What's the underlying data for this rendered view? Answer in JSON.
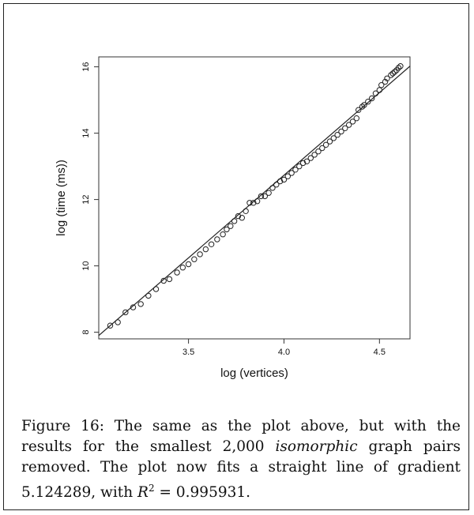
{
  "caption": {
    "lead": "Figure 16:  The same as the plot above, but with the results for the smallest 2,000",
    "emph": "isomorphic",
    "tail": "graph pairs removed. The plot now fits a straight line of gradient 5.124289, with",
    "r2_label": "R",
    "r2_sup": "2",
    "r2_value": " = 0.995931."
  },
  "chart_data": {
    "type": "scatter",
    "xlabel": "log (vertices)",
    "ylabel": "log (time (ms))",
    "xlim": [
      3.03,
      4.66
    ],
    "ylim": [
      7.8,
      16.3
    ],
    "xticks": [
      3.5,
      4.0,
      4.5
    ],
    "xtick_labels": [
      "3.5",
      "4.0",
      "4.5"
    ],
    "yticks": [
      8,
      10,
      12,
      14,
      16
    ],
    "ytick_labels": [
      "8",
      "10",
      "12",
      "14",
      "16"
    ],
    "grid": false,
    "fit_line": {
      "x": [
        3.03,
        4.66
      ],
      "y": [
        7.9,
        16.02
      ]
    },
    "points": [
      [
        3.09,
        8.2
      ],
      [
        3.13,
        8.3
      ],
      [
        3.17,
        8.6
      ],
      [
        3.21,
        8.75
      ],
      [
        3.25,
        8.85
      ],
      [
        3.29,
        9.1
      ],
      [
        3.33,
        9.3
      ],
      [
        3.37,
        9.55
      ],
      [
        3.4,
        9.6
      ],
      [
        3.44,
        9.8
      ],
      [
        3.47,
        9.95
      ],
      [
        3.5,
        10.05
      ],
      [
        3.53,
        10.2
      ],
      [
        3.56,
        10.35
      ],
      [
        3.59,
        10.5
      ],
      [
        3.62,
        10.65
      ],
      [
        3.65,
        10.8
      ],
      [
        3.68,
        10.95
      ],
      [
        3.7,
        11.1
      ],
      [
        3.72,
        11.2
      ],
      [
        3.74,
        11.35
      ],
      [
        3.76,
        11.5
      ],
      [
        3.78,
        11.45
      ],
      [
        3.8,
        11.65
      ],
      [
        3.82,
        11.9
      ],
      [
        3.84,
        11.9
      ],
      [
        3.86,
        11.95
      ],
      [
        3.88,
        12.1
      ],
      [
        3.9,
        12.1
      ],
      [
        3.92,
        12.2
      ],
      [
        3.94,
        12.35
      ],
      [
        3.96,
        12.45
      ],
      [
        3.98,
        12.55
      ],
      [
        4.0,
        12.6
      ],
      [
        4.02,
        12.7
      ],
      [
        4.04,
        12.8
      ],
      [
        4.06,
        12.9
      ],
      [
        4.08,
        13.0
      ],
      [
        4.1,
        13.1
      ],
      [
        4.12,
        13.15
      ],
      [
        4.14,
        13.25
      ],
      [
        4.16,
        13.35
      ],
      [
        4.18,
        13.45
      ],
      [
        4.2,
        13.55
      ],
      [
        4.22,
        13.65
      ],
      [
        4.24,
        13.75
      ],
      [
        4.26,
        13.85
      ],
      [
        4.28,
        13.95
      ],
      [
        4.3,
        14.05
      ],
      [
        4.32,
        14.15
      ],
      [
        4.34,
        14.25
      ],
      [
        4.36,
        14.35
      ],
      [
        4.38,
        14.45
      ],
      [
        4.39,
        14.7
      ],
      [
        4.41,
        14.8
      ],
      [
        4.42,
        14.85
      ],
      [
        4.44,
        14.95
      ],
      [
        4.46,
        15.05
      ],
      [
        4.48,
        15.2
      ],
      [
        4.5,
        15.3
      ],
      [
        4.51,
        15.45
      ],
      [
        4.53,
        15.55
      ],
      [
        4.54,
        15.65
      ],
      [
        4.56,
        15.75
      ],
      [
        4.57,
        15.8
      ],
      [
        4.58,
        15.85
      ],
      [
        4.59,
        15.9
      ],
      [
        4.6,
        15.97
      ],
      [
        4.61,
        16.02
      ]
    ]
  }
}
